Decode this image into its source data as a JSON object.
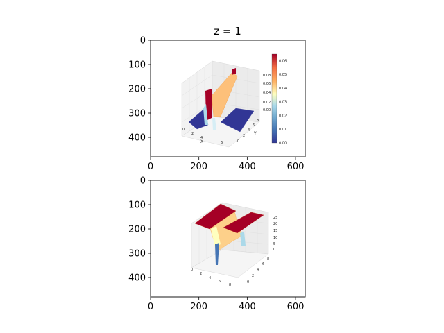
{
  "figure": {
    "title": "z = 1"
  },
  "colors": {
    "low": "#313695",
    "mid_low": "#abd9e9",
    "mid": "#ffffbf",
    "mid_high": "#fdae61",
    "high": "#a50026"
  },
  "chart_data": [
    {
      "type": "image",
      "panel": "top",
      "title": "z = 1",
      "xlim": [
        0,
        640
      ],
      "ylim": [
        480,
        0
      ],
      "xticks": [
        0,
        200,
        400,
        600
      ],
      "yticks": [
        0,
        100,
        200,
        300,
        400
      ],
      "embedded_plot": {
        "type": "surface3d",
        "x_label": "X",
        "y_label": "Y",
        "x_ticks": [
          "0",
          "2",
          "4",
          "6"
        ],
        "y_ticks": [
          "0",
          "2",
          "4",
          "6",
          "8"
        ],
        "z_ticks": [
          "0.00",
          "0.02",
          "0.04",
          "0.06",
          "0.08"
        ],
        "colorbar_ticks": [
          "0.00",
          "0.01",
          "0.02",
          "0.03",
          "0.04",
          "0.05",
          "0.06"
        ],
        "colorbar_range": [
          0,
          0.065
        ]
      }
    },
    {
      "type": "image",
      "panel": "bottom",
      "title": "",
      "xlim": [
        0,
        640
      ],
      "ylim": [
        480,
        0
      ],
      "xticks": [
        0,
        200,
        400,
        600
      ],
      "yticks": [
        0,
        100,
        200,
        300,
        400
      ],
      "embedded_plot": {
        "type": "surface3d",
        "x_ticks": [
          "0",
          "2",
          "4",
          "6",
          "8"
        ],
        "y_ticks": [
          "0",
          "2",
          "4",
          "6",
          "8"
        ],
        "z_ticks": [
          "0",
          "5",
          "10",
          "15",
          "20",
          "25"
        ]
      }
    }
  ]
}
